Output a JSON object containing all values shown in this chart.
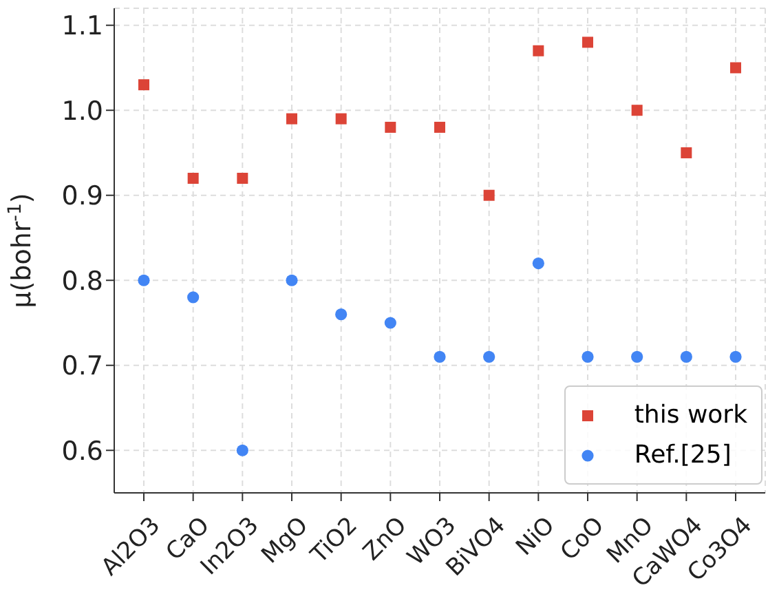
{
  "chart_data": {
    "type": "scatter",
    "ylabel": "μ(bohr$^{-1}$)",
    "categories": [
      "Al2O3",
      "CaO",
      "In2O3",
      "MgO",
      "TiO2",
      "ZnO",
      "WO3",
      "BiVO4",
      "NiO",
      "CoO",
      "MnO",
      "CaWO4",
      "Co3O4"
    ],
    "series": [
      {
        "name": "this work",
        "color": "#dc4437",
        "marker": "square",
        "values": [
          1.03,
          0.92,
          0.92,
          0.99,
          0.99,
          0.98,
          0.98,
          0.9,
          1.07,
          1.08,
          1.0,
          0.95,
          1.05
        ]
      },
      {
        "name": "Ref.[25]",
        "color": "#4285f4",
        "marker": "circle",
        "values": [
          0.8,
          0.78,
          0.6,
          0.8,
          0.76,
          0.75,
          0.71,
          0.71,
          0.82,
          0.71,
          0.71,
          0.71,
          0.71
        ]
      }
    ],
    "ylim": [
      0.55,
      1.12
    ],
    "yticks": [
      0.6,
      0.7,
      0.8,
      0.9,
      {
        "value": 1,
        "label": "1.0"
      },
      1.1
    ],
    "grid": true,
    "legend": "bottom right"
  }
}
